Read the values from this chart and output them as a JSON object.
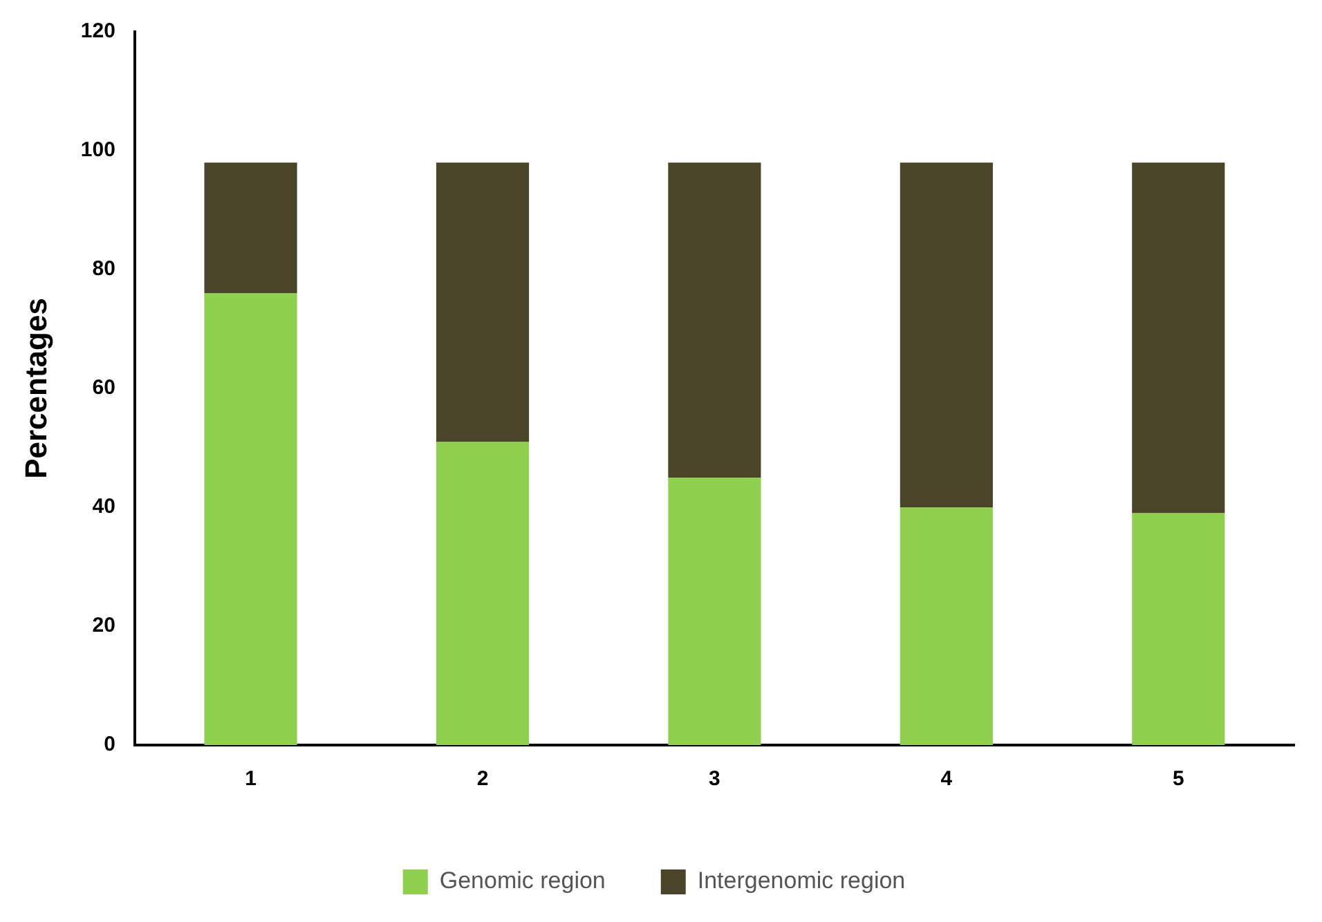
{
  "chart_data": {
    "type": "bar",
    "stacked": true,
    "ylabel": "Percentages",
    "categories": [
      "1",
      "2",
      "3",
      "4",
      "5"
    ],
    "series": [
      {
        "name": "Genomic region",
        "color": "#8fd14f",
        "values": [
          76,
          51,
          45,
          40,
          39
        ]
      },
      {
        "name": "Intergenomic region",
        "color": "#4a4529",
        "values": [
          22,
          47,
          53,
          58,
          59
        ]
      }
    ],
    "ylim": [
      0,
      120
    ],
    "yticks": [
      0,
      20,
      40,
      60,
      80,
      100,
      120
    ],
    "grid": false,
    "legend": "bottom"
  }
}
